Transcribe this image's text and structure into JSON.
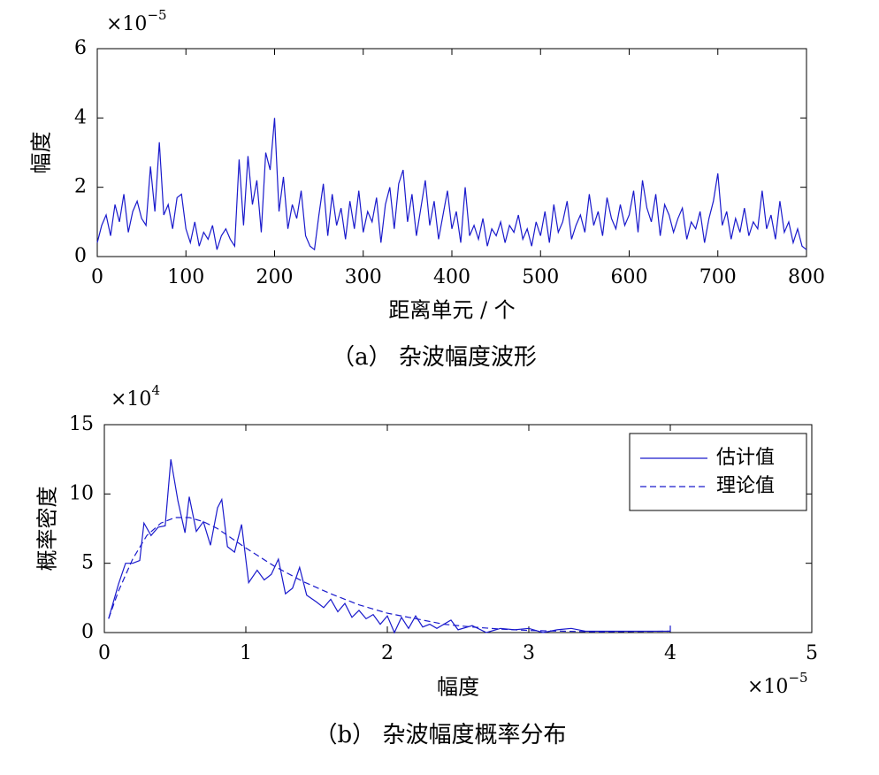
{
  "chart_data": [
    {
      "type": "line",
      "caption": "（a） 杂波幅度波形",
      "x_label": "距离单元 / 个",
      "y_label": "幅度",
      "y_multiplier": {
        "base": "×10",
        "exponent": "−5"
      },
      "xlim": [
        0,
        800
      ],
      "xticks": [
        0,
        100,
        200,
        300,
        400,
        500,
        600,
        700,
        800
      ],
      "ylim": [
        0,
        6
      ],
      "yticks": [
        0,
        2,
        4,
        6
      ],
      "series": [
        {
          "color": "#1a1acc",
          "dash": false,
          "x": [
            0,
            5,
            10,
            15,
            20,
            25,
            30,
            35,
            40,
            45,
            50,
            55,
            60,
            65,
            70,
            75,
            80,
            85,
            90,
            95,
            100,
            105,
            110,
            115,
            120,
            125,
            130,
            135,
            140,
            145,
            150,
            155,
            160,
            165,
            170,
            175,
            180,
            185,
            190,
            195,
            200,
            205,
            210,
            215,
            220,
            225,
            230,
            235,
            240,
            245,
            250,
            255,
            260,
            265,
            270,
            275,
            280,
            285,
            290,
            295,
            300,
            305,
            310,
            315,
            320,
            325,
            330,
            335,
            340,
            345,
            350,
            355,
            360,
            365,
            370,
            375,
            380,
            385,
            390,
            395,
            400,
            405,
            410,
            415,
            420,
            425,
            430,
            435,
            440,
            445,
            450,
            455,
            460,
            465,
            470,
            475,
            480,
            485,
            490,
            495,
            500,
            505,
            510,
            515,
            520,
            525,
            530,
            535,
            540,
            545,
            550,
            555,
            560,
            565,
            570,
            575,
            580,
            585,
            590,
            595,
            600,
            605,
            610,
            615,
            620,
            625,
            630,
            635,
            640,
            645,
            650,
            655,
            660,
            665,
            670,
            675,
            680,
            685,
            690,
            695,
            700,
            705,
            710,
            715,
            720,
            725,
            730,
            735,
            740,
            745,
            750,
            755,
            760,
            765,
            770,
            775,
            780,
            785,
            790,
            795,
            800
          ],
          "values": [
            0.4,
            0.9,
            1.2,
            0.6,
            1.5,
            1.0,
            1.8,
            0.7,
            1.3,
            1.6,
            1.1,
            0.9,
            2.6,
            1.3,
            3.3,
            1.2,
            1.5,
            0.8,
            1.7,
            1.8,
            0.8,
            0.4,
            1.0,
            0.3,
            0.7,
            0.5,
            0.9,
            0.2,
            0.6,
            0.8,
            0.5,
            0.3,
            2.8,
            0.9,
            2.9,
            1.5,
            2.2,
            0.7,
            3.0,
            2.5,
            4.0,
            1.3,
            2.3,
            0.8,
            1.5,
            1.1,
            1.9,
            0.6,
            0.3,
            0.2,
            1.2,
            2.1,
            0.6,
            1.8,
            0.9,
            1.4,
            0.5,
            1.6,
            0.8,
            1.9,
            0.7,
            1.3,
            1.0,
            1.7,
            0.4,
            1.5,
            2.0,
            0.8,
            2.1,
            2.5,
            1.0,
            1.8,
            0.6,
            1.4,
            2.2,
            0.9,
            1.6,
            0.5,
            1.2,
            1.9,
            0.8,
            1.3,
            0.4,
            2.0,
            0.6,
            0.9,
            0.5,
            1.1,
            0.3,
            0.8,
            0.6,
            1.0,
            0.4,
            0.9,
            0.7,
            1.2,
            0.5,
            0.8,
            0.3,
            1.0,
            0.6,
            1.3,
            0.4,
            1.5,
            0.7,
            1.0,
            1.6,
            0.5,
            0.9,
            1.2,
            0.7,
            1.8,
            0.9,
            1.3,
            0.6,
            1.7,
            1.1,
            0.8,
            1.5,
            0.9,
            1.2,
            1.9,
            0.7,
            2.2,
            1.4,
            1.0,
            1.8,
            0.6,
            1.5,
            1.2,
            0.7,
            1.1,
            1.4,
            0.5,
            1.0,
            0.8,
            1.3,
            0.4,
            1.1,
            1.6,
            2.4,
            0.9,
            1.3,
            0.5,
            1.1,
            0.7,
            1.4,
            0.6,
            1.0,
            0.8,
            1.9,
            0.8,
            1.2,
            0.5,
            1.6,
            0.7,
            1.0,
            0.4,
            0.8,
            0.3,
            0.2
          ]
        }
      ]
    },
    {
      "type": "line",
      "caption": "（b） 杂波幅度概率分布",
      "x_label": "幅度",
      "y_label": "概率密度",
      "x_multiplier": {
        "base": "×10",
        "exponent": "−5"
      },
      "y_multiplier": {
        "base": "×10",
        "exponent": "4"
      },
      "xlim": [
        0,
        5
      ],
      "xticks": [
        0,
        1,
        2,
        3,
        4,
        5
      ],
      "ylim": [
        0,
        15
      ],
      "yticks": [
        0,
        5,
        10,
        15
      ],
      "legend": "upper right",
      "series": [
        {
          "name": "估计值",
          "color": "#1a1acc",
          "dash": false,
          "x": [
            0.03,
            0.1,
            0.15,
            0.2,
            0.25,
            0.28,
            0.33,
            0.38,
            0.43,
            0.47,
            0.52,
            0.57,
            0.6,
            0.65,
            0.7,
            0.75,
            0.8,
            0.83,
            0.87,
            0.92,
            0.97,
            1.02,
            1.08,
            1.13,
            1.18,
            1.23,
            1.28,
            1.33,
            1.38,
            1.43,
            1.5,
            1.55,
            1.6,
            1.65,
            1.7,
            1.75,
            1.8,
            1.85,
            1.9,
            1.95,
            2.0,
            2.05,
            2.1,
            2.15,
            2.2,
            2.25,
            2.3,
            2.35,
            2.45,
            2.5,
            2.6,
            2.7,
            2.8,
            2.9,
            3.0,
            3.1,
            3.2,
            3.3,
            3.4,
            4.0,
            4.0
          ],
          "values": [
            1,
            3.5,
            5,
            5,
            5.2,
            7.9,
            7,
            7.6,
            7.7,
            12.5,
            9.5,
            7.2,
            9.8,
            7.3,
            8,
            6.3,
            9,
            9.6,
            6.2,
            5.8,
            7.8,
            3.6,
            4.5,
            3.8,
            4.2,
            5.3,
            2.8,
            3.2,
            4.7,
            2.7,
            2.2,
            1.8,
            2.4,
            1.5,
            2.1,
            1.1,
            1.6,
            1.0,
            1.3,
            0.6,
            1.2,
            0,
            1.1,
            0.3,
            1.2,
            0.4,
            0.6,
            0.3,
            0.9,
            0.2,
            0.5,
            0,
            0.3,
            0.2,
            0.3,
            0,
            0.2,
            0.3,
            0.1,
            0.1,
            0.5
          ]
        },
        {
          "name": "理论值",
          "color": "#1a1acc",
          "dash": true,
          "x": [
            0.03,
            0.1,
            0.2,
            0.3,
            0.4,
            0.5,
            0.6,
            0.7,
            0.8,
            0.9,
            1.0,
            1.2,
            1.4,
            1.6,
            1.8,
            2.0,
            2.2,
            2.4,
            2.6,
            2.8,
            3.0,
            3.5,
            4.0
          ],
          "values": [
            1,
            3,
            5.3,
            7,
            7.9,
            8.3,
            8.3,
            8.0,
            7.5,
            6.8,
            6.1,
            4.8,
            3.7,
            2.8,
            2.0,
            1.4,
            1.0,
            0.6,
            0.4,
            0.25,
            0.15,
            0.05,
            0.1
          ]
        }
      ]
    }
  ]
}
